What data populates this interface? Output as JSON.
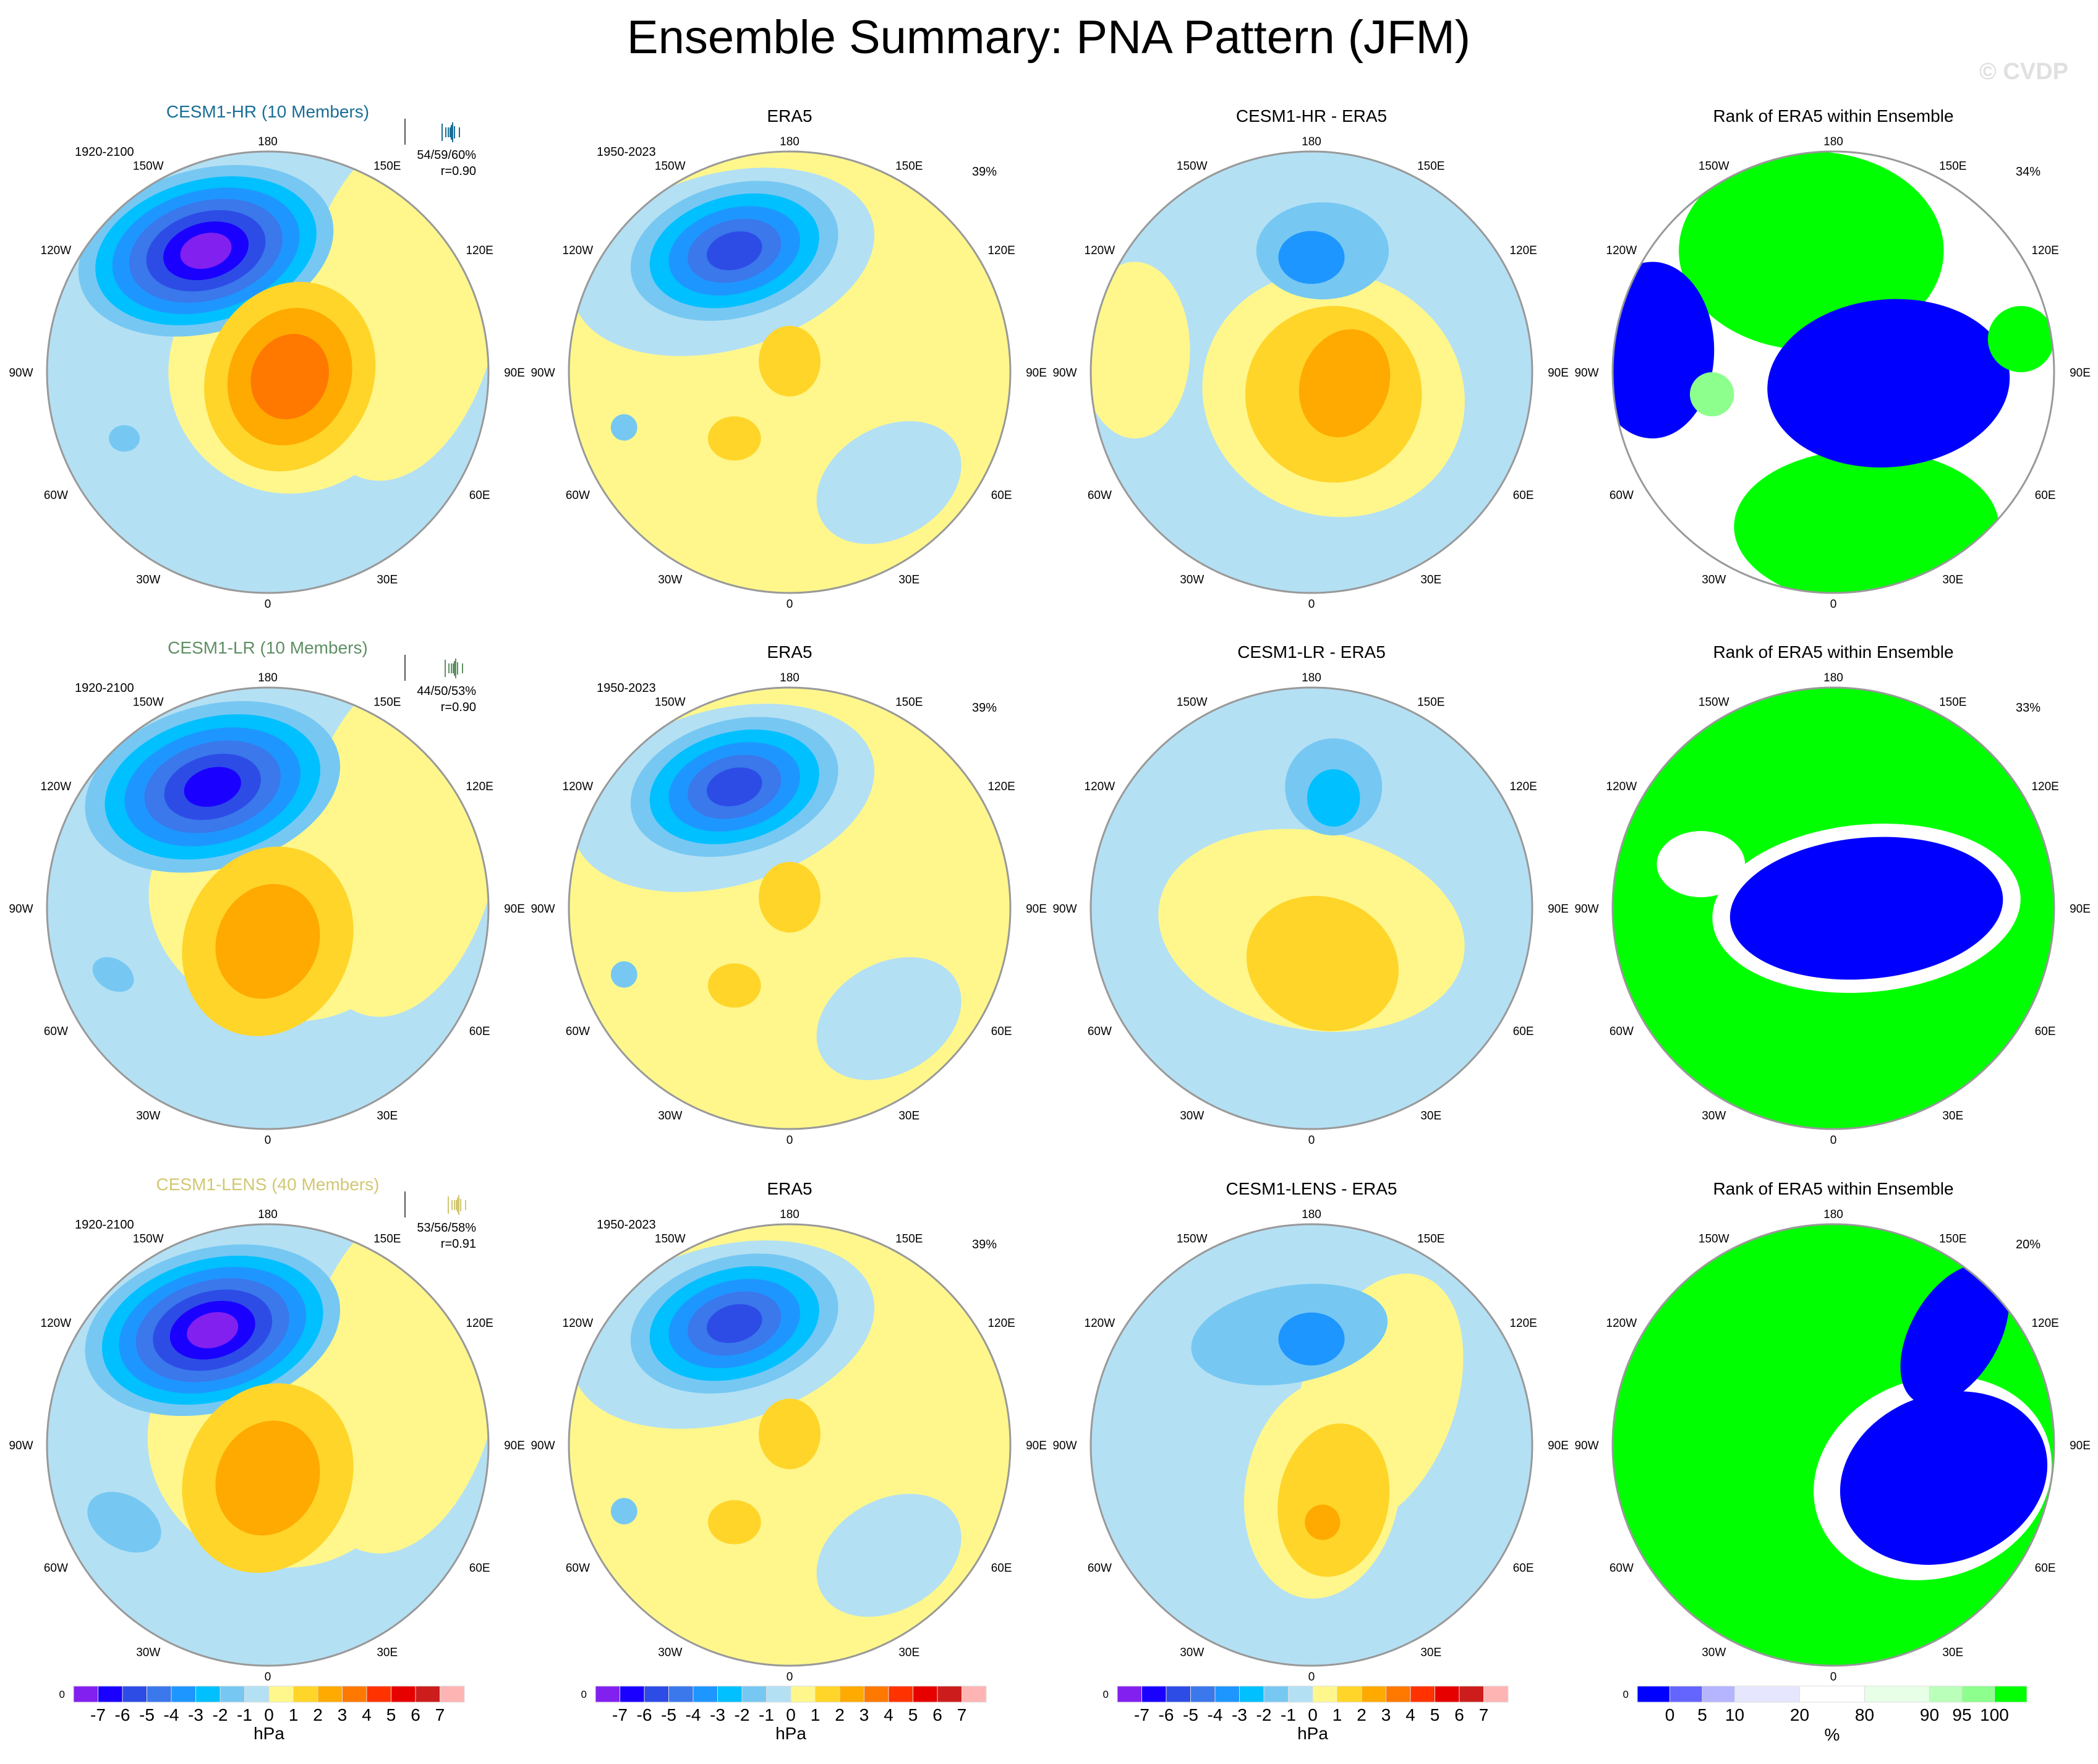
{
  "title": "Ensemble Summary: PNA Pattern (JFM)",
  "watermark": "© CVDP",
  "longitude_labels": [
    "180",
    "150E",
    "120E",
    "90E",
    "60E",
    "30E",
    "0",
    "30W",
    "60W",
    "90W",
    "120W",
    "150W"
  ],
  "colors": {
    "hpa_levels": [
      "#8220f0",
      "#1a00ff",
      "#2d4ce6",
      "#3a78eb",
      "#1e96ff",
      "#00c0ff",
      "#76c8f2",
      "#b4e0f4",
      "#fff78c",
      "#ffd52a",
      "#ffaa00",
      "#ff7800",
      "#ff3200",
      "#e60000",
      "#cc1c1c",
      "#ffb4b4"
    ],
    "rank_levels": [
      "#0000ff",
      "#6464ff",
      "#b4b4ff",
      "#e6e6ff",
      "#ffffff",
      "#e6ffe6",
      "#baffba",
      "#8cff8c",
      "#00ff00"
    ],
    "model_colors": [
      "#1a6e96",
      "#5f8f64",
      "#d2c773"
    ]
  },
  "rows": [
    {
      "model": {
        "title": "CESM1-HR (10 Members)",
        "period": "1920-2100",
        "pct": "54/59/60%",
        "r": "r=0.90"
      },
      "obs": {
        "title": "ERA5",
        "period": "1950-2023",
        "pct": "39%"
      },
      "diff": {
        "title": "CESM1-HR - ERA5"
      },
      "rank": {
        "title": "Rank of ERA5 within Ensemble",
        "pct": "34%"
      }
    },
    {
      "model": {
        "title": "CESM1-LR (10 Members)",
        "period": "1920-2100",
        "pct": "44/50/53%",
        "r": "r=0.90"
      },
      "obs": {
        "title": "ERA5",
        "period": "1950-2023",
        "pct": "39%"
      },
      "diff": {
        "title": "CESM1-LR - ERA5"
      },
      "rank": {
        "title": "Rank of ERA5 within Ensemble",
        "pct": "33%"
      }
    },
    {
      "model": {
        "title": "CESM1-LENS (40 Members)",
        "period": "1920-2100",
        "pct": "53/56/58%",
        "r": "r=0.91"
      },
      "obs": {
        "title": "ERA5",
        "period": "1950-2023",
        "pct": "39%"
      },
      "diff": {
        "title": "CESM1-LENS - ERA5"
      },
      "rank": {
        "title": "Rank of ERA5 within Ensemble",
        "pct": "20%"
      }
    }
  ],
  "colorbar_hpa": {
    "zero_label": "0",
    "ticks": [
      "-7",
      "-6",
      "-5",
      "-4",
      "-3",
      "-2",
      "-1",
      "0",
      "1",
      "2",
      "3",
      "4",
      "5",
      "6",
      "7"
    ],
    "units": "hPa"
  },
  "colorbar_rank": {
    "zero_label": "0",
    "ticks": [
      "0",
      "5",
      "10",
      "20",
      "80",
      "90",
      "95",
      "100"
    ],
    "units": "%"
  }
}
